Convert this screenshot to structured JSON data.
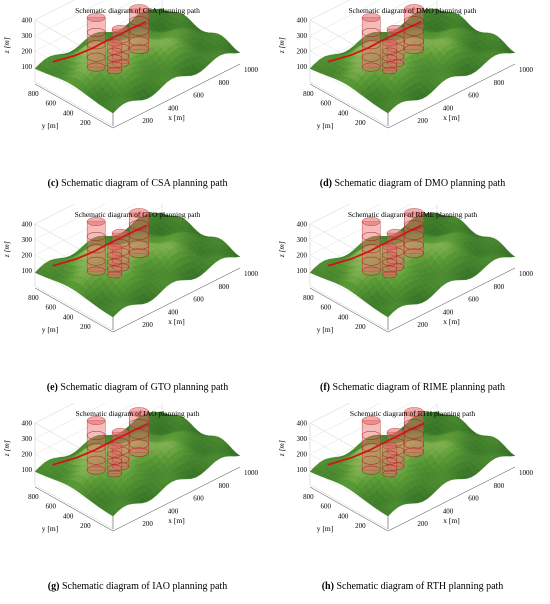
{
  "axes": {
    "z_label": "z [m]",
    "y_label": "y [m]",
    "x_label": "x [m]",
    "z_ticks": [
      "400",
      "300",
      "200",
      "100"
    ],
    "y_ticks": [
      "800",
      "600",
      "400",
      "200"
    ],
    "x_ticks": [
      "200",
      "400",
      "600",
      "800",
      "1000"
    ]
  },
  "colors": {
    "terrain_dark": "#2e6b22",
    "terrain_mid": "#5a9a35",
    "terrain_light": "#bcd27a",
    "path": "#d01515",
    "threat": "#e86a6a"
  },
  "panels": [
    {
      "title": "Schematic diagram of CSA planning path",
      "letter": "(c)",
      "caption": " Schematic diagram of CSA planning path"
    },
    {
      "title": "Schematic diagram of DMO planning path",
      "letter": "(d)",
      "caption": " Schematic diagram of DMO planning path"
    },
    {
      "title": "Schematic diagram of GTO planning path",
      "letter": "(e)",
      "caption": " Schematic diagram of GTO planning path"
    },
    {
      "title": "Schematic diagram of RIME planning path",
      "letter": "(f)",
      "caption": " Schematic diagram of RIME planning path"
    },
    {
      "title": "Schematic diagram of IAO planning path",
      "letter": "(g)",
      "caption": " Schematic diagram of IAO planning path"
    },
    {
      "title": "Schematic diagram of RTH planning path",
      "letter": "(h)",
      "caption": " Schematic diagram of RTH planning path"
    }
  ]
}
